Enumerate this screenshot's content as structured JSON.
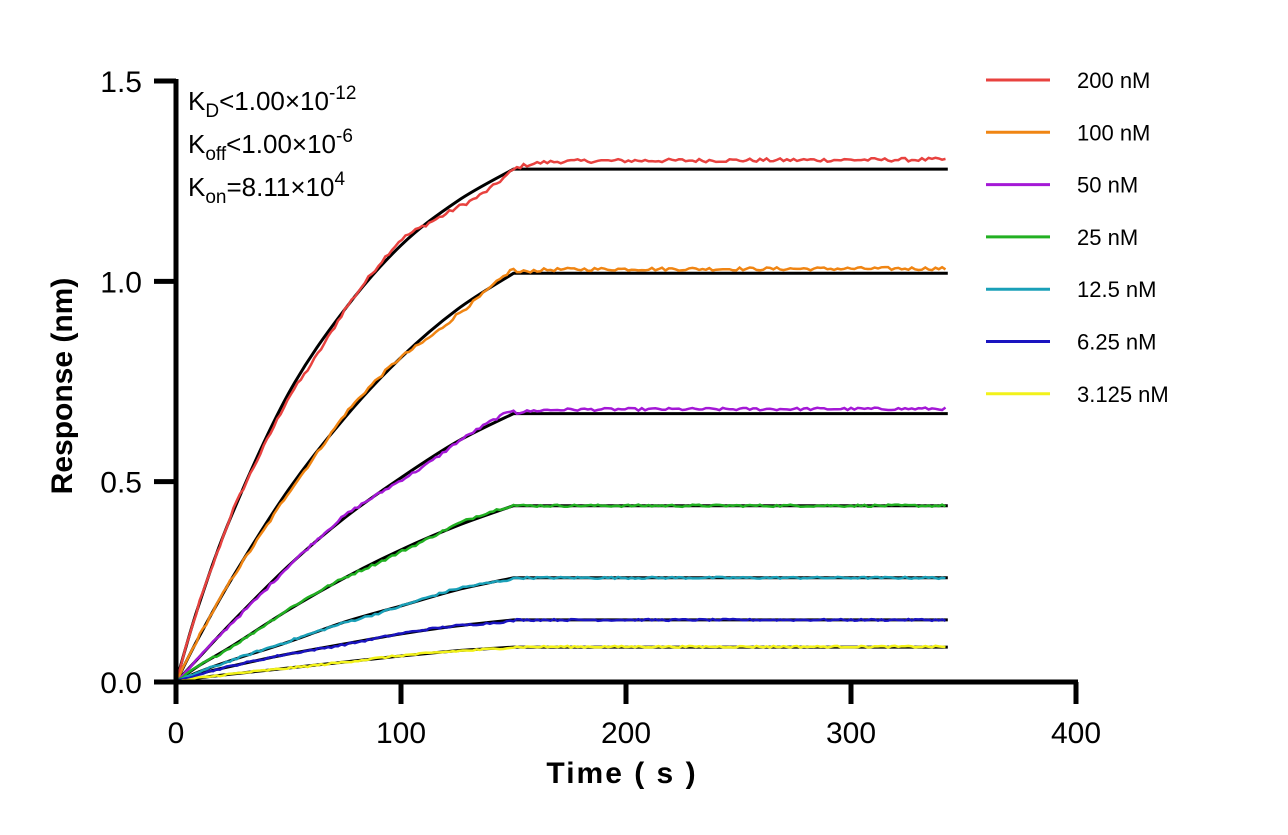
{
  "chart_data": {
    "type": "line",
    "xlabel": "Time ( s )",
    "ylabel": "Response (nm)",
    "xlim": [
      0,
      400
    ],
    "ylim": [
      0,
      1.5
    ],
    "x_ticks": [
      "0",
      "100",
      "200",
      "300",
      "400"
    ],
    "y_ticks": [
      "0.0",
      "0.5",
      "1.0",
      "1.5"
    ],
    "grid": false,
    "legend_position": "top-right",
    "annotations": [
      {
        "main": "K",
        "sub": "D",
        "rest": "<1.00×10",
        "sup": "-12"
      },
      {
        "main": "K",
        "sub": "off",
        "rest": "<1.00×10",
        "sup": "-6"
      },
      {
        "main": "K",
        "sub": "on",
        "rest": "=8.11×10",
        "sup": "4"
      }
    ],
    "association_end_s": 150,
    "end_s": 343,
    "fit_color": "#000000",
    "series": [
      {
        "name": "200 nM",
        "color": "#e8423f",
        "association": [
          [
            0,
            0
          ],
          [
            10,
            0.19
          ],
          [
            25,
            0.42
          ],
          [
            50,
            0.72
          ],
          [
            75,
            0.93
          ],
          [
            100,
            1.09
          ],
          [
            125,
            1.2
          ],
          [
            150,
            1.28
          ]
        ],
        "plateau": 1.3
      },
      {
        "name": "100 nM",
        "color": "#f08513",
        "association": [
          [
            0,
            0
          ],
          [
            10,
            0.11
          ],
          [
            25,
            0.26
          ],
          [
            50,
            0.48
          ],
          [
            75,
            0.66
          ],
          [
            100,
            0.81
          ],
          [
            125,
            0.93
          ],
          [
            150,
            1.02
          ]
        ],
        "plateau": 1.03
      },
      {
        "name": "50 nM",
        "color": "#a418d6",
        "association": [
          [
            0,
            0
          ],
          [
            10,
            0.06
          ],
          [
            25,
            0.15
          ],
          [
            50,
            0.29
          ],
          [
            75,
            0.41
          ],
          [
            100,
            0.51
          ],
          [
            125,
            0.6
          ],
          [
            150,
            0.67
          ]
        ],
        "plateau": 0.68
      },
      {
        "name": "25 nM",
        "color": "#22b022",
        "association": [
          [
            0,
            0
          ],
          [
            10,
            0.04
          ],
          [
            25,
            0.09
          ],
          [
            50,
            0.18
          ],
          [
            75,
            0.26
          ],
          [
            100,
            0.33
          ],
          [
            125,
            0.39
          ],
          [
            150,
            0.44
          ]
        ],
        "plateau": 0.44
      },
      {
        "name": "12.5 nM",
        "color": "#1aa0b8",
        "association": [
          [
            0,
            0
          ],
          [
            10,
            0.025
          ],
          [
            25,
            0.055
          ],
          [
            50,
            0.1
          ],
          [
            75,
            0.15
          ],
          [
            100,
            0.19
          ],
          [
            125,
            0.23
          ],
          [
            150,
            0.26
          ]
        ],
        "plateau": 0.26
      },
      {
        "name": "6.25 nM",
        "color": "#1a14c0",
        "association": [
          [
            0,
            0
          ],
          [
            10,
            0.02
          ],
          [
            25,
            0.04
          ],
          [
            50,
            0.07
          ],
          [
            75,
            0.095
          ],
          [
            100,
            0.12
          ],
          [
            125,
            0.14
          ],
          [
            150,
            0.155
          ]
        ],
        "plateau": 0.155
      },
      {
        "name": "3.125 nM",
        "color": "#f2f21a",
        "association": [
          [
            0,
            0
          ],
          [
            10,
            0.01
          ],
          [
            25,
            0.02
          ],
          [
            50,
            0.035
          ],
          [
            75,
            0.05
          ],
          [
            100,
            0.065
          ],
          [
            125,
            0.078
          ],
          [
            150,
            0.087
          ]
        ],
        "plateau": 0.088
      }
    ]
  }
}
